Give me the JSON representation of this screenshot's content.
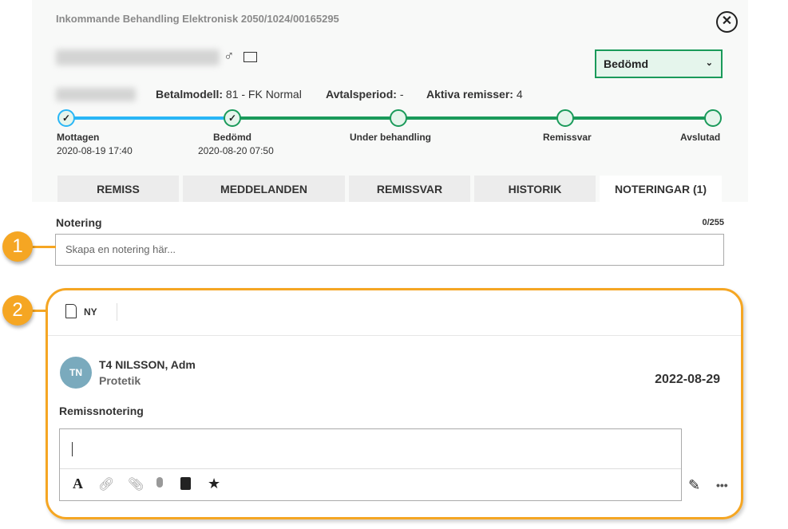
{
  "header": {
    "title": "Inkommande Behandling Elektronisk 2050/1024/00165295",
    "close_icon": "close-circle-icon",
    "gender_icon": "male-icon",
    "mail_icon": "envelope-icon"
  },
  "status_select": {
    "value": "Bedömd"
  },
  "info": {
    "betalmodell_label": "Betalmodell:",
    "betalmodell_value": "81 - FK Normal",
    "avtalsperiod_label": "Avtalsperiod:",
    "avtalsperiod_value": "-",
    "remisser_label": "Aktiva remisser:",
    "remisser_value": "4"
  },
  "progress": {
    "colors": {
      "done": "#29b6f6",
      "active": "#1a9a5a"
    },
    "steps": [
      {
        "label": "Mottagen",
        "date": "2020-08-19 17:40",
        "done": true
      },
      {
        "label": "Bedömd",
        "date": "2020-08-20 07:50",
        "done": true
      },
      {
        "label": "Under behandling",
        "date": "",
        "done": false
      },
      {
        "label": "Remissvar",
        "date": "",
        "done": false
      },
      {
        "label": "Avslutad",
        "date": "",
        "done": false
      }
    ]
  },
  "tabs": [
    {
      "label": "REMISS"
    },
    {
      "label": "MEDDELANDEN"
    },
    {
      "label": "REMISSVAR"
    },
    {
      "label": "HISTORIK"
    },
    {
      "label": "NOTERINGAR (1)",
      "active": true
    }
  ],
  "note": {
    "label": "Notering",
    "counter": "0/255",
    "placeholder": "Skapa en notering här..."
  },
  "callouts": [
    "1",
    "2"
  ],
  "card": {
    "new_label": "NY",
    "avatar": "TN",
    "author": "T4 NILSSON, Adm",
    "department": "Protetik",
    "date": "2022-08-29",
    "section": "Remissnotering",
    "toolbar_icons": [
      "font-icon",
      "link-icon",
      "paperclip-icon",
      "microphone-icon",
      "book-icon",
      "star-icon"
    ]
  },
  "accent": "#f5a623"
}
